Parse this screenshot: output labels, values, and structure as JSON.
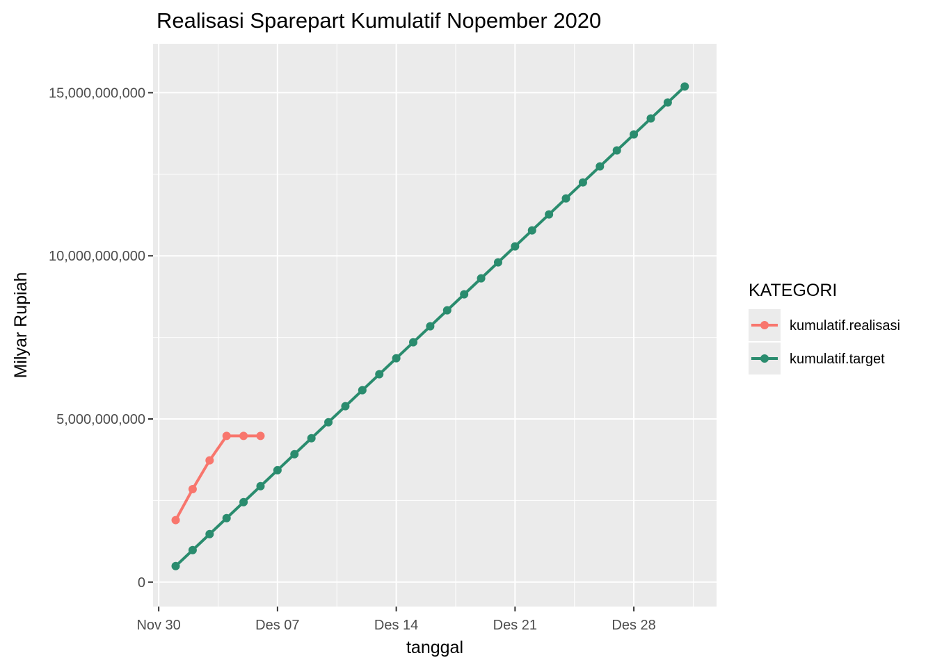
{
  "chart_data": {
    "type": "line",
    "title": "Realisasi Sparepart Kumulatif Nopember 2020",
    "xlabel": "tanggal",
    "ylabel": "Milyar Rupiah",
    "x_tick_labels": [
      "Nov 30",
      "Des 07",
      "Des 14",
      "Des 21",
      "Des 28"
    ],
    "x_ticks": [
      "2020-11-30",
      "2020-12-07",
      "2020-12-14",
      "2020-12-21",
      "2020-12-28"
    ],
    "y_tick_labels": [
      "0",
      "5,000,000,000",
      "10,000,000,000",
      "15,000,000,000"
    ],
    "y_ticks": [
      0,
      5000000000,
      10000000000,
      15000000000
    ],
    "ylim": [
      -750000000,
      16500000000
    ],
    "xlim": [
      "2020-11-29T16:00",
      "2021-01-01T21:00"
    ],
    "grid": true,
    "legend": {
      "title": "KATEGORI",
      "position": "right"
    },
    "series": [
      {
        "name": "kumulatif.realisasi",
        "color": "#F8766D",
        "x": [
          "2020-12-01",
          "2020-12-02",
          "2020-12-03",
          "2020-12-04",
          "2020-12-05",
          "2020-12-06"
        ],
        "values": [
          1900000000,
          2850000000,
          3730000000,
          4480000000,
          4480000000,
          4480000000
        ]
      },
      {
        "name": "kumulatif.target",
        "color": "#2A8C6E",
        "x": [
          "2020-12-01",
          "2020-12-02",
          "2020-12-03",
          "2020-12-04",
          "2020-12-05",
          "2020-12-06",
          "2020-12-07",
          "2020-12-08",
          "2020-12-09",
          "2020-12-10",
          "2020-12-11",
          "2020-12-12",
          "2020-12-13",
          "2020-12-14",
          "2020-12-15",
          "2020-12-16",
          "2020-12-17",
          "2020-12-18",
          "2020-12-19",
          "2020-12-20",
          "2020-12-21",
          "2020-12-22",
          "2020-12-23",
          "2020-12-24",
          "2020-12-25",
          "2020-12-26",
          "2020-12-27",
          "2020-12-28",
          "2020-12-29",
          "2020-12-30",
          "2020-12-31"
        ],
        "values": [
          490000000,
          980000000,
          1470000000,
          1960000000,
          2450000000,
          2940000000,
          3430000000,
          3920000000,
          4410000000,
          4900000000,
          5390000000,
          5880000000,
          6370000000,
          6860000000,
          7350000000,
          7840000000,
          8330000000,
          8820000000,
          9310000000,
          9800000000,
          10290000000,
          10780000000,
          11270000000,
          11760000000,
          12250000000,
          12740000000,
          13230000000,
          13720000000,
          14210000000,
          14700000000,
          15190000000
        ]
      }
    ]
  }
}
